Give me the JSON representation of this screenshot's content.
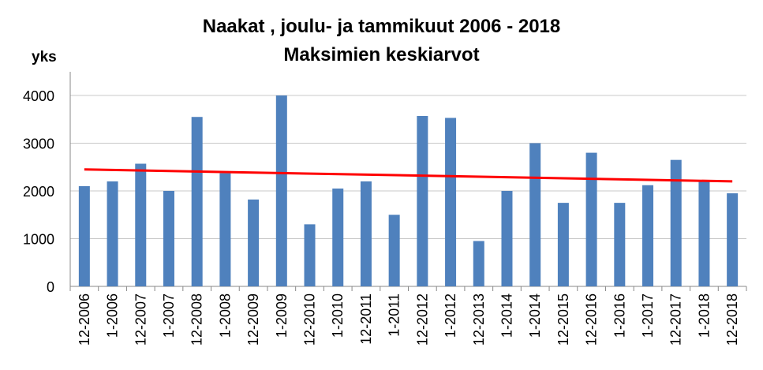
{
  "chart_data": {
    "type": "bar",
    "title": "Naakat , joulu-  ja tammikuut 2006 - 2018",
    "subtitle": "Maksimien keskiarvot",
    "ylabel": "yks",
    "xlabel": "",
    "ylim": [
      0,
      4000
    ],
    "yticks": [
      0,
      1000,
      2000,
      3000,
      4000
    ],
    "grid": true,
    "categories": [
      "12-2006",
      "1-2006",
      "12-2007",
      "1-2007",
      "12-2008",
      "1-2008",
      "12-2009",
      "1-2009",
      "12-2010",
      "1-2010",
      "12-2011",
      "1-2011",
      "12-2012",
      "1-2012",
      "12-2013",
      "1-2014",
      "1-2014",
      "12-2015",
      "12-2016",
      "1-2016",
      "1-2017",
      "12-2017",
      "1-2018",
      "12-2018"
    ],
    "values": [
      2100,
      2200,
      2570,
      2000,
      3550,
      2370,
      1820,
      4000,
      1300,
      2050,
      2200,
      1500,
      3570,
      3530,
      950,
      2000,
      3000,
      1750,
      2800,
      1750,
      2120,
      2650,
      2200,
      1950
    ],
    "bar_color": "#4f81bd",
    "trendline": {
      "start": 2450,
      "end": 2200,
      "color": "#ff0000"
    }
  }
}
